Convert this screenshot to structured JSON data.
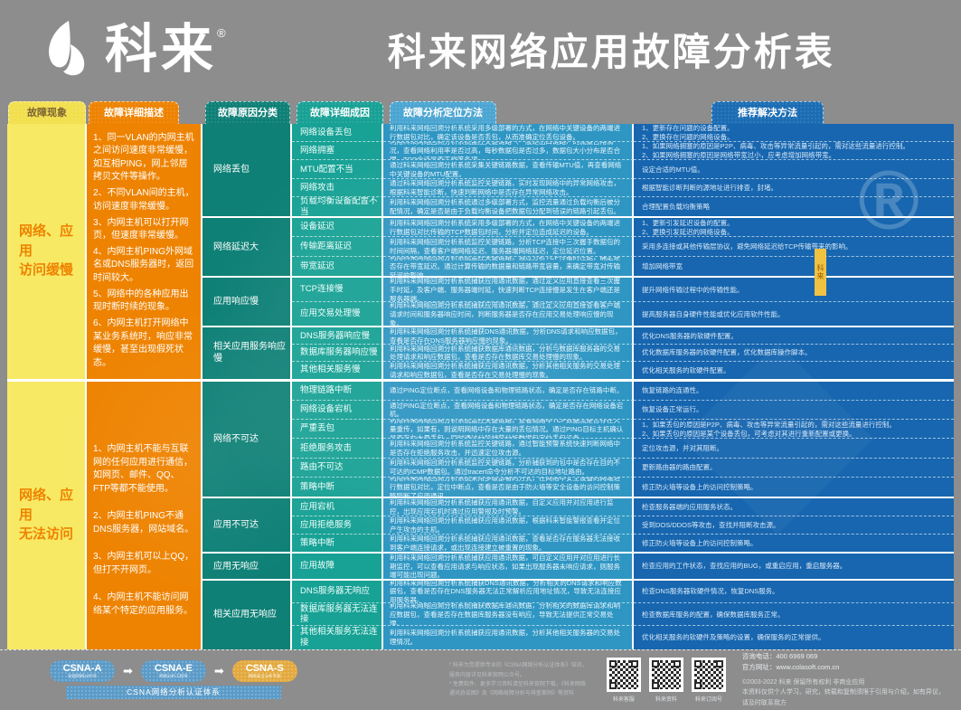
{
  "header": {
    "logo": "科来",
    "reg": "®",
    "title": "科来网络应用故障分析表"
  },
  "columns": {
    "phenomenon": "故障现象",
    "description": "故障详细描述",
    "category": "故障原因分类",
    "cause": "故障详细成因",
    "method": "故障分析定位方法",
    "solution": "推荐解决方法"
  },
  "watermarks": {
    "registered": "®",
    "ribbon": "科来"
  },
  "colors": {
    "bg": "#8d8d8d",
    "yellow": "#f7e964",
    "orange": "#ee8301",
    "teal_dark": "#0e8076",
    "teal": "#18a195",
    "blue": "#2f96c3",
    "blue_dark": "#1766af"
  },
  "sections": [
    {
      "phenomenon": "网络、应用\n访问缓慢",
      "descriptions": [
        "1、同一VLAN的内网主机之间访问速度非常缓慢，如互相PING，网上邻居拷贝文件等操作。",
        "2、不同VLAN间的主机，访问速度非常缓慢。",
        "3、内网主机可以打开网页，但速度非常缓慢。",
        "4、内网主机PING外网域名或DNS服务器时，返回时间较大。",
        "5、网络中的各种应用出现时断时续的现象。",
        "6、内网主机打开网络中某业务系统时，响应非常缓慢，甚至出现假死状态。"
      ],
      "groups": [
        {
          "category": "网络丢包",
          "rows": [
            {
              "cause": "网络设备丢包",
              "method": "利用科来网络回溯分析系统采用多级部署的方式，在网络中关键设备的两端进行数据包对比，确定该设备是否丢包，从而准确定位丢包设备。",
              "solution": "1、更新存在问题的设备配置。\n2、更换存在问题的网络设备。"
            },
            {
              "cause": "网络拥塞",
              "method": "利用科来网络回溯分析系统监控关键链路（一般是出口链路）的流量占用情况，查看网络利用率是否过高，每秒数据包是否过多，数据包大小分布是否合理、TCP会话是否正常等各项。",
              "solution": "1、如果网络拥塞的原因是P2P、病毒、攻击等异常流量引起的，需对这些流量进行控制。\n2、如果网络拥塞的原因是网络带宽过小，应考虑增加网络带宽。"
            },
            {
              "cause": "MTU配置不当",
              "method": "通过科来网络回溯分析系统采集关键链路数据，查看传输MTU值，再查看网络中关键设备的MTU配置。",
              "solution": "设定合适的MTU值。"
            },
            {
              "cause": "网络攻击",
              "method": "通过科来网络回溯分析系统监控关键链路，实时发现网络中的异常网络攻击，根据科来智能诊断，快速判断网络中是否存在异常网络攻击。",
              "solution": "根据智能诊断判断的源地址进行排查，封堵。"
            },
            {
              "cause": "负载均衡设备配置不当",
              "method": "利用科来网络回溯分析系统通过多级部署方式，监控流量通过负载均衡后被分配情况，确定是否是由于负载均衡设备把数据包分配到错误的链路引起丢包。",
              "solution": "合理配置负载均衡策略"
            }
          ]
        },
        {
          "category": "网络延迟大",
          "rows": [
            {
              "cause": "设备延迟",
              "method": "利用科来网络回溯分析系统采用多级部署的方式，在网络中关键设备的两端进行数据包对比传输的TCP数据包时间，分析并定位造成延迟的设备。",
              "solution": "1、更新引发延迟设备的配置。\n2、更换引发延迟的网络设备。"
            },
            {
              "cause": "传输距离延迟",
              "method": "利用科来网络回溯分析系统监控关键链路，分析TCP连接中三次握手数据包的时间间隔，查看客户端网络延迟、服务器端网络延迟，定位延迟位置。",
              "solution": "采用多连接或其他传输层协议，避免网络延迟给TCP传输带来的影响。"
            },
            {
              "cause": "带宽延迟",
              "method": "利用科来网络回溯分析系统监控关键链路，通过分析TCP传输的性能，确定是否存在带宽延迟。通过计算传输的数据量和链路带宽容量，来确定带宽对传输延迟的影响。",
              "solution": "增加网络带宽"
            }
          ]
        },
        {
          "category": "应用响应慢",
          "rows": [
            {
              "cause": "TCP连接慢",
              "method": "利用科来网络回溯分析系统捕获应用通讯数据，通过定义应用直接查看三次握手时延，及客户端、服务器端时延，快速判断TCP连接慢是发生在客户端还是服务器端。",
              "solution": "提升网络传输过程中的传输性能。"
            },
            {
              "cause": "应用交易处理慢",
              "method": "利用科来网络回溯分析系统捕获应用通讯数据，通过定义应用直接查看客户端请求时间和服务器响应时间，判断服务器是否存在应用交易处理响应慢的现象。",
              "solution": "提高服务器自身硬件性能或优化应用软件性能。"
            }
          ]
        },
        {
          "category": "相关应用服务响应慢",
          "rows": [
            {
              "cause": "DNS服务器响应慢",
              "method": "利用科来网络回溯分析系统捕获DNS通讯数据，分析DNS请求和响应数据包，查看是否存在DNS服务器响应慢的现象。",
              "solution": "优化DNS服务器的软硬件配置。"
            },
            {
              "cause": "数据库服务器响应慢",
              "method": "利用科来网络回溯分析系统捕获数据库通讯数据，分析与数据库服务器的交易处理请求和响应数据包，查看是否存在数据库交易处理慢的现象。",
              "solution": "优化数据库服务器的软硬件配置，优化数据库操作脚本。"
            },
            {
              "cause": "其他相关服务慢",
              "method": "利用科来网络回溯分析系统捕获应用通讯数据，分析其他相关服务的交易处理请求和响应数据包，查看是否存在交易处理慢的现象。",
              "solution": "优化相关服务的软硬件配置。"
            }
          ]
        }
      ]
    },
    {
      "phenomenon": "网络、应用\n无法访问",
      "descriptions": [
        "1、内网主机不能与互联网的任何应用进行通信，如网页、邮件、QQ、FTP等都不能使用。",
        "2、内网主机PING不通DNS服务器，网站域名。",
        "3、内网主机可以上QQ，但打不开网页。",
        "4、内网主机不能访问网络某个特定的应用服务。"
      ],
      "groups": [
        {
          "category": "网络不可达",
          "rows": [
            {
              "cause": "物理链路中断",
              "method": "通过PING定位断点，查看网络设备和物理链路状态，确定是否存在链路中断。",
              "solution": "恢复链路的连通性。"
            },
            {
              "cause": "网络设备宕机",
              "method": "通过PING定位断点，查看网络设备和物理链路状态，确定是否存在网络设备宕机。",
              "solution": "恢复设备正常运行。"
            },
            {
              "cause": "严重丢包",
              "method": "利用科来网络回溯分析系统监控关键链路，查看链路中TCP数据流是否存在大量重传，如果有，则说明网络中存在大量的丢包情况。通过PING目标主机确认是否存在大量丢包，同时通过分段捕获分析数据包定位丢包设备。",
              "solution": "1、如果丢包的原因是P2P、病毒、攻击等异常流量引起的，需对这些流量进行控制。\n2、如果丢包的原因是某个设备丢包，可考虑对其进行重新配置或更换。"
            },
            {
              "cause": "拒绝服务攻击",
              "method": "利用科来网络回溯分析系统监控关键链路，通过智能预警系统快速判断网络中是否存在拒绝服务攻击，并迅速定位攻击源。",
              "solution": "定位攻击源，并对其阻断。"
            },
            {
              "cause": "路由不可达",
              "method": "利用科来网络回溯分析系统监控关键链路，分析捕获到的包中是否存在目的不可达的ICMP数据包。通过tracert命令分析不可达的目标地址路由。",
              "solution": "更新路由器的路由配置。"
            },
            {
              "cause": "策略中断",
              "method": "利用科来网络回溯分析系统采用多级部署的方式，在网络中安全设备的两端进行数据包对比，定位中断点，查看是否是由于防火墙等安全设备的访问控制策略阻断了应用通讯。",
              "solution": "修正防火墙等设备上的访问控制策略。"
            }
          ]
        },
        {
          "category": "应用不可达",
          "rows": [
            {
              "cause": "应用宕机",
              "method": "利用科来网络回溯分析系统捕获应用通讯数据，自定义应用并对应用进行监控，出现应用宕机时通过应用警报及时预警。",
              "solution": "检查服务器端的应用服务状态。"
            },
            {
              "cause": "应用拒绝服务",
              "method": "利用科来网络回溯分析系统捕获应用通讯数据，根据科来智能警报查看并定位产生攻击的主机。",
              "solution": "受到DOS/DDOS等攻击，查找并阻断攻击源。"
            },
            {
              "cause": "策略中断",
              "method": "利用科来网络回溯分析系统捕获应用通讯数据，查看是否存在服务器无法接收到客户端连接请求，或出现连接建立被重置的现象。",
              "solution": "修正防火墙等设备上的访问控制策略。"
            }
          ]
        },
        {
          "category": "应用无响应",
          "rows": [
            {
              "cause": "应用故障",
              "method": "利用科来网络回溯分析系统捕获应用通讯数据，可自定义应用并对应用进行长期监控，可以查看应用请求与响应状态，如果出现服务器未响应请求，则服务端可能出现问题。",
              "solution": "检查应用的工作状态，查找应用的BUG，或重启应用，重启服务器。"
            }
          ]
        },
        {
          "category": "相关应用无响应",
          "rows": [
            {
              "cause": "DNS服务器无响应",
              "method": "利用科来网络回溯分析系统捕获DNS通讯数据，分析相关的DNS请求和响应数据包，查看是否存在DNS服务器无法正常解析应用地址情况，导致无法连接应用服务器。",
              "solution": "检查DNS服务器软硬件情况，恢复DNS服务。"
            },
            {
              "cause": "数据库服务器无法连接",
              "method": "利用科来网络回溯分析系统捕获数据库通讯数据，分析相关的数据库请求和响应数据包，查看是否存在数据库服务器没有响应，导致无法提供正常交易处理。",
              "solution": "检查数据库服务的配置，确保数据库服务正常。"
            },
            {
              "cause": "其他相关服务无法连接",
              "method": "利用科来网络回溯分析系统捕获应用通讯数据，分析其他相关服务器的交易处理情况。",
              "solution": "优化相关服务的软硬件及策略的设置，确保服务的正常提供。"
            }
          ]
        }
      ]
    }
  ],
  "footer": {
    "badges": [
      {
        "label": "CSNA-A",
        "sub": "助理网络分析师"
      },
      {
        "label": "CSNA-E",
        "sub": "网络分析工程师"
      },
      {
        "label": "CSNA-S",
        "sub": "网络安全分析专家"
      }
    ],
    "arrow": "➡",
    "badge_bar": "CSNA网络分析认证体系",
    "notes": [
      "* 科来为您提供专业的《CSNA网络分析认证体系》培训，服务内容详见科来官网公众号。",
      "* 免费软件、更多学习资料请至科来官网下载，《科来网络通讯协议图》及《网络故障分析与排查案例》等资料"
    ],
    "qr_captions": [
      "科来客服",
      "科来资料",
      "科来订阅号"
    ],
    "contact": {
      "phone": "咨询电话：400 6969 069",
      "site": "官方网址：www.colasoft.com.cn",
      "copyright": "©2003-2022 科来 保留所有权利 非商业应用",
      "disclaimer": "本资料仅供个人学习、研究，转载和复制须限于引用与介绍，如有异议，请及时联系我方"
    }
  }
}
